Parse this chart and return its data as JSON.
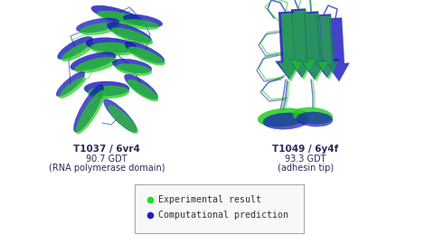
{
  "background_color": "#ffffff",
  "title1_bold": "T1037 / 6vr4",
  "title1_line2": "90.7 GDT",
  "title1_line3": "(RNA polymerase domain)",
  "title2_bold": "T1049 / 6y4f",
  "title2_line2": "93.3 GDT",
  "title2_line3": "(adhesin tip)",
  "legend_label1": "Experimental result",
  "legend_label2": "Computational prediction",
  "legend_color1": "#22dd22",
  "legend_color2": "#2222bb",
  "text_color": "#2a2a5a",
  "title_fontsize": 7.5,
  "sub_fontsize": 7.0,
  "legend_fontsize": 7.2,
  "green": "#22cc22",
  "blue": "#1515bb",
  "white": "#ffffff"
}
